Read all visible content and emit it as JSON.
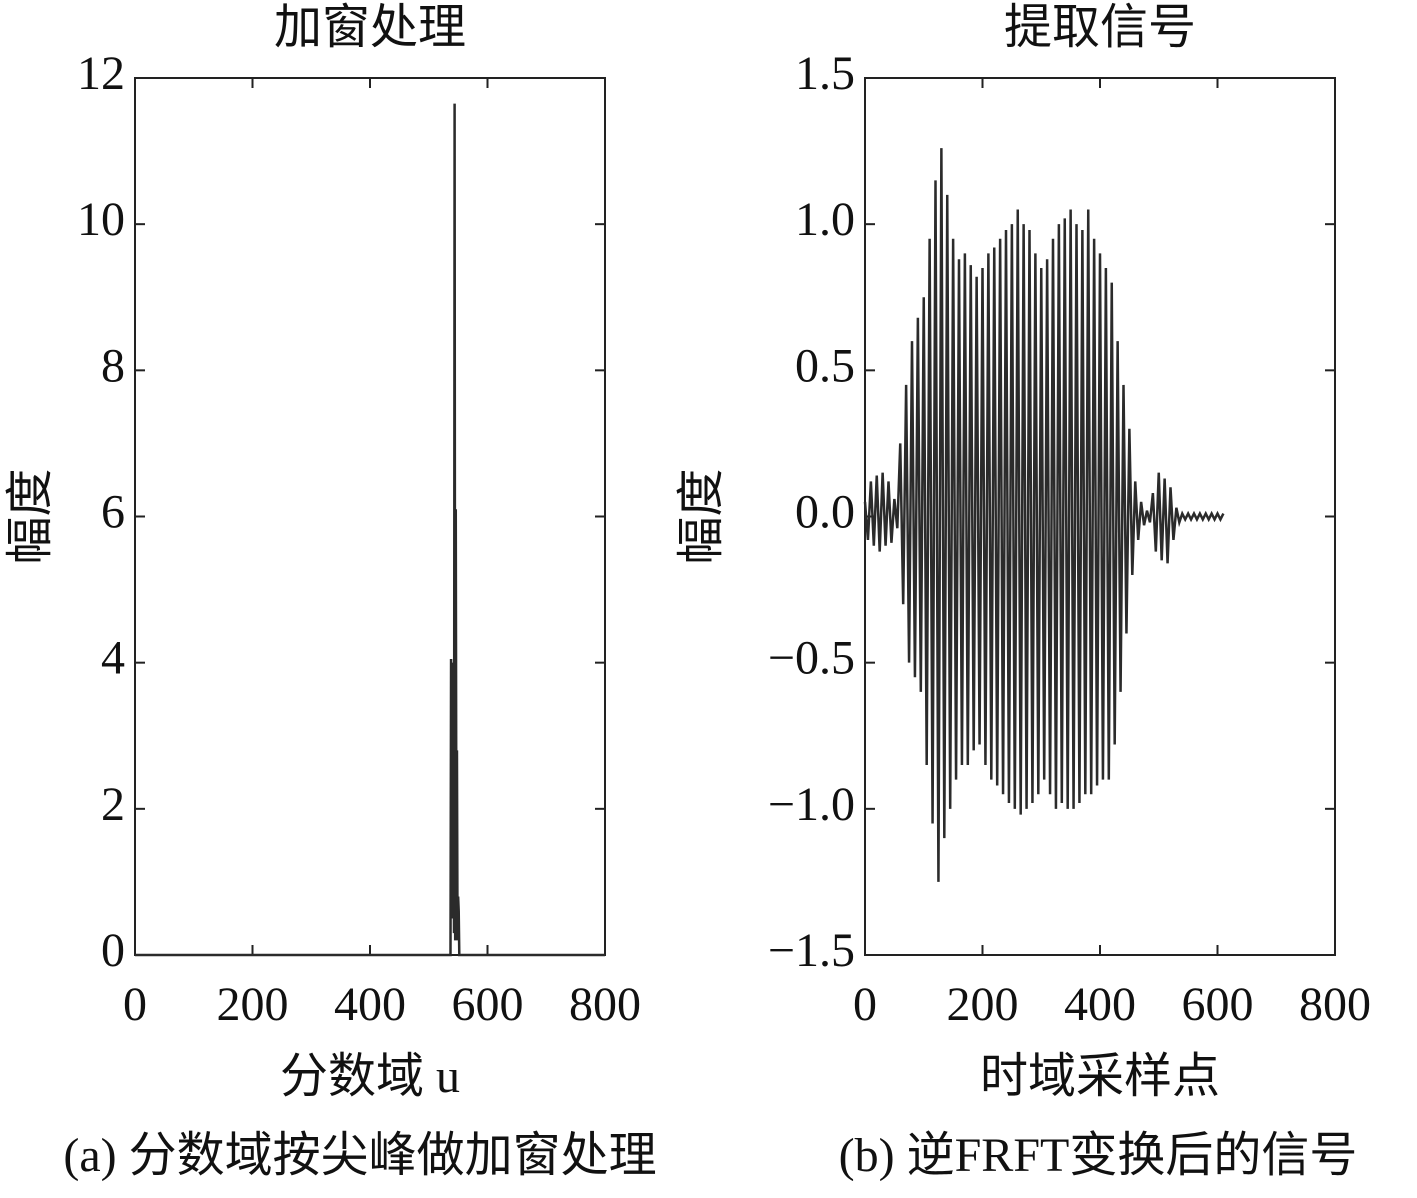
{
  "chart_data": [
    {
      "type": "line",
      "title": "加窗处理",
      "ylabel": "幅度",
      "xlabel": "分数域 u",
      "caption": "(a) 分数域按尖峰做加窗处理",
      "color": "#2b2b2b",
      "x": [
        0,
        537,
        538,
        539,
        540,
        541,
        542,
        543,
        544,
        545,
        546,
        547,
        548,
        549,
        550,
        551,
        552,
        800
      ],
      "values": [
        0,
        0,
        4.05,
        0.5,
        3.0,
        2.9,
        4.0,
        0.3,
        11.65,
        0.2,
        6.1,
        1.5,
        2.8,
        0.2,
        0.8,
        0.6,
        0,
        0
      ],
      "xlim": [
        0,
        800
      ],
      "xticks": [
        0,
        200,
        400,
        600,
        800
      ],
      "ylim": [
        0,
        12
      ],
      "yticks": [
        0,
        2,
        4,
        6,
        8,
        10,
        12
      ]
    },
    {
      "type": "line",
      "title": "提取信号",
      "ylabel": "幅度",
      "xlabel": "时域采样点",
      "caption": "(b) 逆FRFT变换后的信号",
      "color": "#2b2b2b",
      "x": [
        0,
        5,
        10,
        15,
        20,
        25,
        30,
        35,
        40,
        45,
        50,
        55,
        60,
        65,
        70,
        75,
        80,
        85,
        90,
        95,
        100,
        105,
        110,
        115,
        120,
        125,
        130,
        135,
        140,
        145,
        150,
        155,
        160,
        165,
        170,
        175,
        180,
        185,
        190,
        195,
        200,
        205,
        210,
        215,
        220,
        225,
        230,
        235,
        240,
        245,
        250,
        255,
        260,
        265,
        270,
        275,
        280,
        285,
        290,
        295,
        300,
        305,
        310,
        315,
        320,
        325,
        330,
        335,
        340,
        345,
        350,
        355,
        360,
        365,
        370,
        375,
        380,
        385,
        390,
        395,
        400,
        405,
        410,
        415,
        420,
        425,
        430,
        435,
        440,
        445,
        450,
        455,
        460,
        465,
        470,
        475,
        480,
        485,
        490,
        495,
        500,
        505,
        510,
        515,
        520,
        525,
        530,
        535,
        540,
        545,
        550,
        555,
        560,
        565,
        570,
        575,
        580,
        585,
        590,
        595,
        600,
        605,
        610
      ],
      "values": [
        0.05,
        -0.08,
        0.12,
        -0.1,
        0.14,
        -0.12,
        0.15,
        -0.1,
        0.12,
        -0.09,
        0.06,
        -0.04,
        0.25,
        -0.3,
        0.45,
        -0.5,
        0.6,
        -0.55,
        0.68,
        -0.6,
        0.75,
        -0.85,
        0.95,
        -1.05,
        1.15,
        -1.25,
        1.26,
        -1.1,
        1.1,
        -1.0,
        0.95,
        -0.9,
        0.88,
        -0.85,
        0.9,
        -0.85,
        0.86,
        -0.8,
        0.82,
        -0.78,
        0.85,
        -0.85,
        0.9,
        -0.9,
        0.92,
        -0.92,
        0.95,
        -0.95,
        0.98,
        -0.98,
        1.0,
        -1.0,
        1.05,
        -1.02,
        1.0,
        -1.0,
        0.98,
        -0.98,
        0.9,
        -0.95,
        0.85,
        -0.9,
        0.88,
        -0.95,
        0.95,
        -1.0,
        1.0,
        -0.98,
        1.02,
        -1.0,
        1.05,
        -1.0,
        1.0,
        -0.98,
        0.98,
        -0.95,
        1.05,
        -0.95,
        0.95,
        -0.92,
        0.9,
        -0.9,
        0.85,
        -0.9,
        0.8,
        -0.78,
        0.6,
        -0.6,
        0.45,
        -0.4,
        0.3,
        -0.2,
        0.12,
        -0.08,
        0.05,
        -0.03,
        0.02,
        -0.02,
        0.08,
        -0.12,
        0.15,
        -0.15,
        0.13,
        -0.16,
        0.1,
        -0.08,
        0.03,
        -0.02,
        0.01,
        -0.01,
        0.01,
        -0.01,
        0.01,
        -0.01,
        0.01,
        -0.01,
        0.01,
        -0.01,
        0.01,
        -0.01,
        0.01,
        -0.01,
        0.01
      ],
      "xlim": [
        0,
        800
      ],
      "xticks": [
        0,
        200,
        400,
        600,
        800
      ],
      "ylim": [
        -1.5,
        1.5
      ],
      "yticks": [
        {
          "value": -1.5,
          "label": "−1.5"
        },
        {
          "value": -1,
          "label": "−1.0"
        },
        {
          "value": -0.5,
          "label": "−0.5"
        },
        {
          "value": 0,
          "label": "0.0"
        },
        0.5,
        {
          "value": 1,
          "label": "1.0"
        },
        1.5
      ]
    }
  ]
}
